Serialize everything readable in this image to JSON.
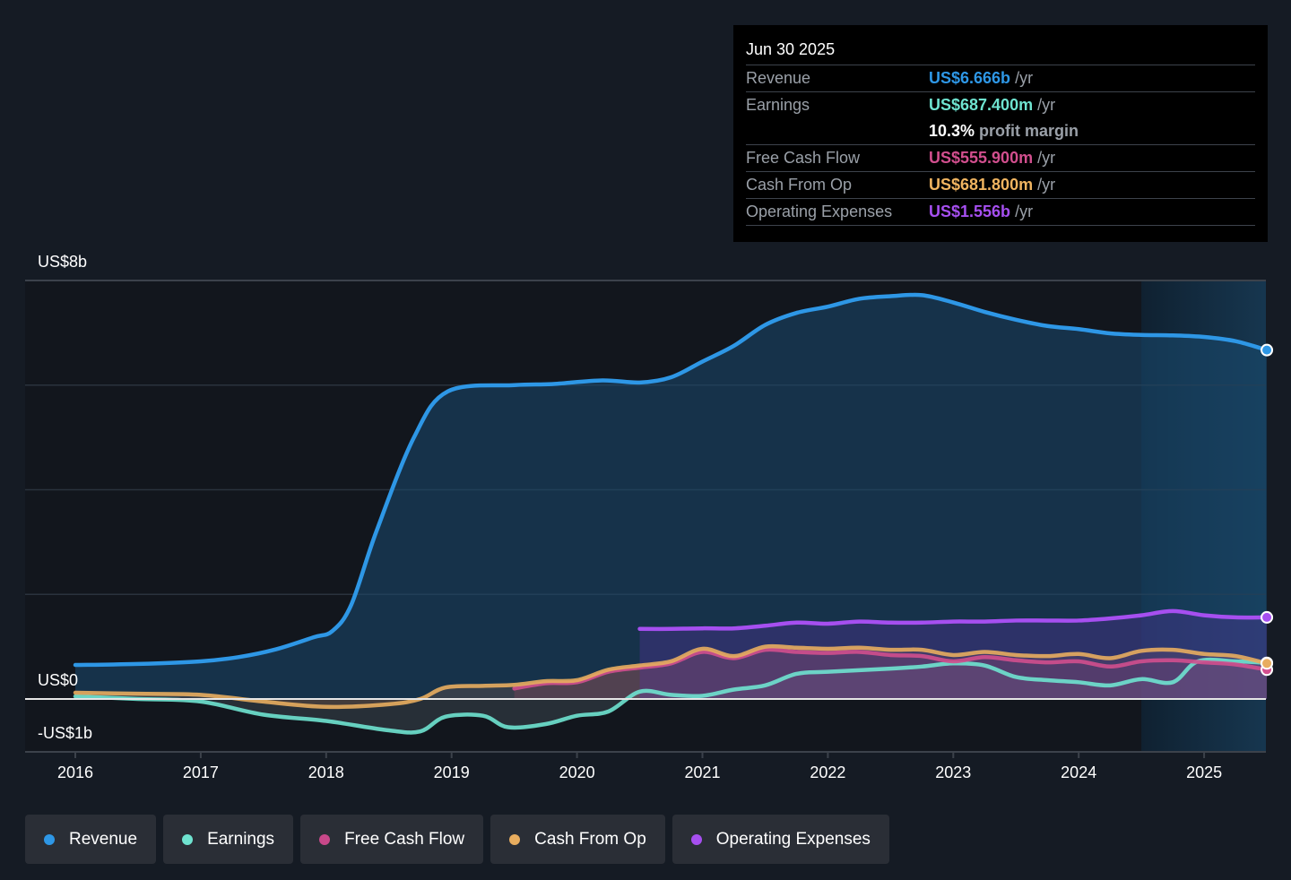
{
  "tooltip": {
    "date": "Jun 30 2025",
    "rows": [
      {
        "label": "Revenue",
        "value": "US$6.666b",
        "unit": "/yr",
        "color": "#2e97e6"
      },
      {
        "label": "Earnings",
        "value": "US$687.400m",
        "unit": "/yr",
        "color": "#6fe3d0"
      },
      {
        "label": "",
        "value": "10.3%",
        "unit": "profit margin",
        "color": "#ffffff"
      },
      {
        "label": "Free Cash Flow",
        "value": "US$555.900m",
        "unit": "/yr",
        "color": "#d24f8e"
      },
      {
        "label": "Cash From Op",
        "value": "US$681.800m",
        "unit": "/yr",
        "color": "#f0b460"
      },
      {
        "label": "Operating Expenses",
        "value": "US$1.556b",
        "unit": "/yr",
        "color": "#a64ff0"
      }
    ]
  },
  "legend": [
    {
      "label": "Revenue",
      "color": "#2e97e6"
    },
    {
      "label": "Earnings",
      "color": "#6fe3d0"
    },
    {
      "label": "Free Cash Flow",
      "color": "#c8488a"
    },
    {
      "label": "Cash From Op",
      "color": "#e8ad5f"
    },
    {
      "label": "Operating Expenses",
      "color": "#a64ff0"
    }
  ],
  "chart_data": {
    "type": "line",
    "title": "",
    "xlabel": "",
    "ylabel": "",
    "y_tick_labels": [
      "US$8b",
      "US$0",
      "-US$1b"
    ],
    "ylim": [
      -1,
      8
    ],
    "xlim": [
      2015.6,
      2025.5
    ],
    "x_ticks": [
      "2016",
      "2017",
      "2018",
      "2019",
      "2020",
      "2021",
      "2022",
      "2023",
      "2024",
      "2025"
    ],
    "grid": true,
    "legend_position": "bottom",
    "forecast_shade_start": 2024.5,
    "series": [
      {
        "name": "Revenue",
        "color": "#2e97e6",
        "x": [
          2016.0,
          2016.5,
          2017.0,
          2017.3,
          2017.6,
          2017.9,
          2018.05,
          2018.2,
          2018.4,
          2018.7,
          2018.97,
          2019.5,
          2019.8,
          2020.2,
          2020.5,
          2020.75,
          2021.0,
          2021.25,
          2021.5,
          2021.75,
          2022.0,
          2022.25,
          2022.5,
          2022.75,
          2023.0,
          2023.25,
          2023.5,
          2023.75,
          2024.0,
          2024.25,
          2024.5,
          2024.75,
          2025.0,
          2025.25,
          2025.5
        ],
        "y": [
          0.65,
          0.67,
          0.72,
          0.8,
          0.95,
          1.18,
          1.3,
          1.8,
          3.2,
          5.0,
          5.88,
          6.0,
          6.02,
          6.09,
          6.05,
          6.15,
          6.45,
          6.75,
          7.15,
          7.38,
          7.5,
          7.65,
          7.7,
          7.72,
          7.58,
          7.4,
          7.25,
          7.13,
          7.07,
          6.99,
          6.96,
          6.95,
          6.92,
          6.84,
          6.67
        ]
      },
      {
        "name": "Earnings",
        "color": "#6fe3d0",
        "x": [
          2016.0,
          2016.5,
          2017.0,
          2017.5,
          2018.0,
          2018.5,
          2018.75,
          2018.95,
          2019.25,
          2019.45,
          2019.75,
          2020.0,
          2020.25,
          2020.5,
          2020.75,
          2021.0,
          2021.25,
          2021.5,
          2021.75,
          2022.0,
          2022.5,
          2022.75,
          2023.0,
          2023.25,
          2023.5,
          2023.75,
          2024.0,
          2024.25,
          2024.5,
          2024.75,
          2024.95,
          2025.25,
          2025.5
        ],
        "y": [
          0.05,
          0.0,
          -0.05,
          -0.3,
          -0.42,
          -0.6,
          -0.62,
          -0.34,
          -0.32,
          -0.54,
          -0.48,
          -0.32,
          -0.24,
          0.14,
          0.08,
          0.06,
          0.18,
          0.26,
          0.48,
          0.52,
          0.58,
          0.62,
          0.68,
          0.64,
          0.42,
          0.36,
          0.32,
          0.26,
          0.38,
          0.32,
          0.72,
          0.72,
          0.69
        ]
      },
      {
        "name": "Free Cash Flow",
        "color": "#d24f8e",
        "x": [
          2019.5,
          2019.75,
          2020.0,
          2020.25,
          2020.5,
          2020.75,
          2021.0,
          2021.25,
          2021.5,
          2021.75,
          2022.0,
          2022.25,
          2022.5,
          2022.75,
          2023.0,
          2023.25,
          2023.5,
          2023.75,
          2024.0,
          2024.25,
          2024.5,
          2024.75,
          2025.0,
          2025.25,
          2025.5
        ],
        "y": [
          0.2,
          0.3,
          0.32,
          0.52,
          0.6,
          0.68,
          0.9,
          0.78,
          0.94,
          0.9,
          0.88,
          0.9,
          0.84,
          0.82,
          0.72,
          0.8,
          0.74,
          0.7,
          0.72,
          0.62,
          0.72,
          0.74,
          0.7,
          0.66,
          0.56
        ]
      },
      {
        "name": "Cash From Op",
        "color": "#e8ad5f",
        "x": [
          2016.0,
          2016.5,
          2017.0,
          2017.5,
          2018.0,
          2018.5,
          2018.75,
          2018.95,
          2019.25,
          2019.5,
          2019.75,
          2020.0,
          2020.25,
          2020.5,
          2020.75,
          2021.0,
          2021.25,
          2021.5,
          2021.75,
          2022.0,
          2022.25,
          2022.5,
          2022.75,
          2023.0,
          2023.25,
          2023.5,
          2023.75,
          2024.0,
          2024.25,
          2024.5,
          2024.75,
          2025.0,
          2025.25,
          2025.5
        ],
        "y": [
          0.12,
          0.1,
          0.08,
          -0.05,
          -0.15,
          -0.1,
          0.0,
          0.22,
          0.25,
          0.27,
          0.34,
          0.36,
          0.56,
          0.64,
          0.72,
          0.96,
          0.82,
          1.0,
          0.98,
          0.96,
          0.98,
          0.94,
          0.94,
          0.84,
          0.9,
          0.84,
          0.82,
          0.86,
          0.78,
          0.92,
          0.94,
          0.86,
          0.82,
          0.68
        ]
      },
      {
        "name": "Operating Expenses",
        "color": "#a64ff0",
        "x": [
          2020.5,
          2020.75,
          2021.0,
          2021.25,
          2021.5,
          2021.75,
          2022.0,
          2022.25,
          2022.5,
          2022.75,
          2023.0,
          2023.25,
          2023.5,
          2023.75,
          2024.0,
          2024.25,
          2024.5,
          2024.75,
          2025.0,
          2025.25,
          2025.5
        ],
        "y": [
          1.34,
          1.34,
          1.35,
          1.35,
          1.4,
          1.46,
          1.44,
          1.48,
          1.46,
          1.46,
          1.48,
          1.48,
          1.5,
          1.5,
          1.5,
          1.54,
          1.6,
          1.68,
          1.6,
          1.56,
          1.56
        ]
      }
    ]
  }
}
